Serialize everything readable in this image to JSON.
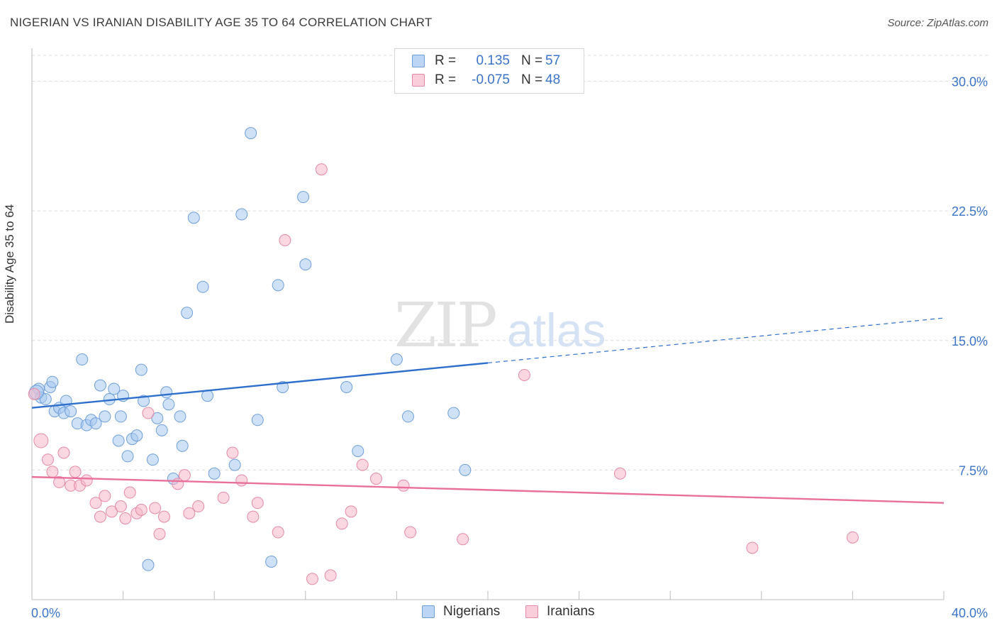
{
  "header": {
    "title": "NIGERIAN VS IRANIAN DISABILITY AGE 35 TO 64 CORRELATION CHART",
    "source": "Source: ZipAtlas.com"
  },
  "legend": {
    "rows": [
      {
        "r_label": "R =",
        "r_value": "0.135",
        "n_label": "N =",
        "n_value": "57",
        "color": "#a8c8f0"
      },
      {
        "r_label": "R =",
        "r_value": "-0.075",
        "n_label": "N =",
        "n_value": "48",
        "color": "#f5b6c8"
      }
    ]
  },
  "watermark": {
    "zip": "ZIP",
    "atlas": "atlas"
  },
  "chart_data": {
    "type": "scatter",
    "ylabel": "Disability Age 35 to 64",
    "xlim": [
      0,
      40
    ],
    "ylim": [
      0,
      31.5
    ],
    "x_tick_labels": [
      "0.0%",
      "40.0%"
    ],
    "y_ticks": [
      7.5,
      15.0,
      22.5,
      30.0
    ],
    "y_tick_labels": [
      "7.5%",
      "15.0%",
      "22.5%",
      "30.0%"
    ],
    "grid": true,
    "series": [
      {
        "name": "Nigerians",
        "color": "#a8c8f0",
        "stroke": "#6f9fd8",
        "trend": {
          "x0": 0,
          "y0": 11.1,
          "x1": 20,
          "y1": 13.7,
          "dash_to_x": 40,
          "dash_to_y": 16.3,
          "color": "#2e6fcc"
        },
        "points": [
          [
            0.3,
            12.2
          ],
          [
            0.4,
            11.7
          ],
          [
            0.6,
            11.6
          ],
          [
            0.8,
            12.3
          ],
          [
            0.9,
            12.6
          ],
          [
            1.0,
            10.9
          ],
          [
            1.2,
            11.1
          ],
          [
            1.4,
            10.8
          ],
          [
            1.5,
            11.5
          ],
          [
            1.7,
            10.9
          ],
          [
            2.0,
            10.2
          ],
          [
            2.2,
            13.9
          ],
          [
            2.4,
            10.1
          ],
          [
            2.6,
            10.4
          ],
          [
            2.8,
            10.2
          ],
          [
            3.0,
            12.4
          ],
          [
            3.2,
            10.6
          ],
          [
            3.4,
            11.6
          ],
          [
            3.6,
            12.2
          ],
          [
            3.8,
            9.2
          ],
          [
            3.9,
            10.6
          ],
          [
            4.0,
            11.8
          ],
          [
            4.2,
            8.3
          ],
          [
            4.4,
            9.3
          ],
          [
            4.6,
            9.5
          ],
          [
            4.8,
            13.3
          ],
          [
            4.9,
            11.5
          ],
          [
            5.1,
            2.0
          ],
          [
            5.3,
            8.1
          ],
          [
            5.5,
            10.5
          ],
          [
            5.7,
            9.8
          ],
          [
            5.9,
            12.0
          ],
          [
            6.0,
            11.3
          ],
          [
            6.2,
            7.0
          ],
          [
            6.5,
            10.6
          ],
          [
            6.6,
            8.9
          ],
          [
            6.8,
            16.6
          ],
          [
            7.1,
            22.1
          ],
          [
            7.5,
            18.1
          ],
          [
            7.7,
            11.8
          ],
          [
            8.0,
            7.3
          ],
          [
            8.9,
            7.8
          ],
          [
            9.2,
            22.3
          ],
          [
            9.6,
            27.0
          ],
          [
            9.9,
            10.4
          ],
          [
            10.5,
            2.2
          ],
          [
            10.8,
            18.2
          ],
          [
            11.0,
            12.3
          ],
          [
            11.9,
            23.3
          ],
          [
            12.0,
            19.4
          ],
          [
            13.8,
            12.3
          ],
          [
            14.3,
            8.6
          ],
          [
            16.0,
            13.9
          ],
          [
            16.5,
            10.6
          ],
          [
            18.5,
            10.8
          ],
          [
            19.0,
            7.5
          ],
          [
            0.2,
            12.0
          ]
        ]
      },
      {
        "name": "Iranians",
        "color": "#f5b6c8",
        "stroke": "#e58aa6",
        "trend": {
          "x0": 0,
          "y0": 7.1,
          "x1": 40,
          "y1": 5.6,
          "color": "#e8709a"
        },
        "points": [
          [
            0.1,
            11.9
          ],
          [
            0.4,
            9.2
          ],
          [
            0.7,
            8.1
          ],
          [
            0.9,
            7.4
          ],
          [
            1.2,
            6.8
          ],
          [
            1.4,
            8.5
          ],
          [
            1.7,
            6.6
          ],
          [
            1.9,
            7.4
          ],
          [
            2.1,
            6.6
          ],
          [
            2.4,
            6.9
          ],
          [
            2.8,
            5.6
          ],
          [
            3.0,
            4.8
          ],
          [
            3.2,
            6.0
          ],
          [
            3.5,
            5.1
          ],
          [
            3.9,
            5.4
          ],
          [
            4.1,
            4.7
          ],
          [
            4.3,
            6.2
          ],
          [
            4.6,
            5.0
          ],
          [
            4.8,
            5.2
          ],
          [
            5.1,
            10.8
          ],
          [
            5.4,
            5.3
          ],
          [
            5.6,
            3.8
          ],
          [
            5.8,
            4.8
          ],
          [
            6.4,
            6.7
          ],
          [
            6.7,
            7.2
          ],
          [
            6.9,
            5.0
          ],
          [
            7.3,
            5.4
          ],
          [
            8.4,
            5.9
          ],
          [
            8.8,
            8.5
          ],
          [
            9.2,
            6.9
          ],
          [
            9.7,
            4.8
          ],
          [
            9.9,
            5.6
          ],
          [
            10.8,
            3.9
          ],
          [
            11.1,
            20.8
          ],
          [
            12.3,
            1.2
          ],
          [
            12.7,
            24.9
          ],
          [
            13.1,
            1.4
          ],
          [
            13.6,
            4.4
          ],
          [
            14.0,
            5.1
          ],
          [
            14.5,
            7.8
          ],
          [
            15.1,
            7.0
          ],
          [
            16.3,
            6.6
          ],
          [
            16.6,
            3.9
          ],
          [
            18.9,
            3.5
          ],
          [
            21.6,
            13.0
          ],
          [
            25.8,
            7.3
          ],
          [
            31.6,
            3.0
          ],
          [
            36.0,
            3.6
          ]
        ]
      }
    ]
  },
  "bottom_legend": [
    {
      "label": "Nigerians",
      "color": "#a8c8f0",
      "stroke": "#6f9fd8"
    },
    {
      "label": "Iranians",
      "color": "#f5b6c8",
      "stroke": "#e58aa6"
    }
  ]
}
